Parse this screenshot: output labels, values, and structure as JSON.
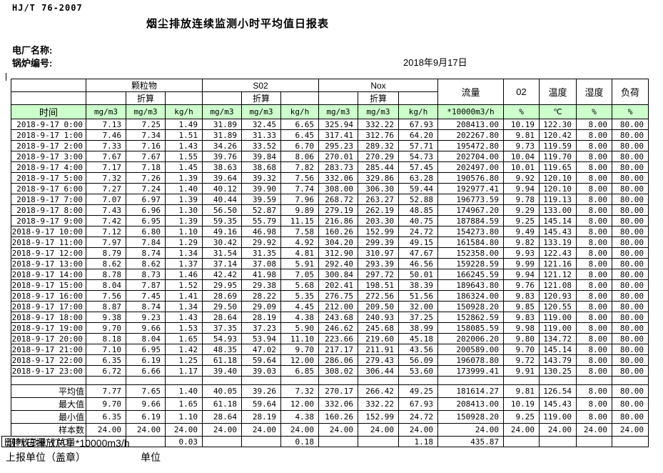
{
  "colors": {
    "header_green": "#ccffcc",
    "border": "#000000"
  },
  "header": {
    "standard": "HJ/T 76-2007",
    "title": "烟尘排放连续监测小时平均值日报表",
    "plant_label": "电厂名称:",
    "boiler_label": "锅炉编号:",
    "date": "2018年9月17日"
  },
  "table": {
    "time_header": "时间",
    "group_pm": "颗粒物",
    "group_so2": "S02",
    "group_nox": "Nox",
    "converted_label": "折算",
    "col_flow": "流量",
    "col_o2": "02",
    "col_temp": "温度",
    "col_humidity": "湿度",
    "col_load": "负荷",
    "unit_mg": "mg/m3",
    "unit_kg": "kg/h",
    "unit_flow": "*10000m3/h",
    "unit_pct": "%",
    "unit_temp": "℃",
    "rows": [
      {
        "time": "2018-9-17 0:00",
        "values": [
          "7.13",
          "7.25",
          "1.49",
          "31.89",
          "32.45",
          "6.65",
          "325.94",
          "332.22",
          "67.93",
          "208413.00",
          "10.19",
          "122.30",
          "8.00",
          "80.00"
        ]
      },
      {
        "time": "2018-9-17 1:00",
        "values": [
          "7.46",
          "7.34",
          "1.51",
          "31.89",
          "31.33",
          "6.45",
          "317.41",
          "312.76",
          "64.20",
          "202267.80",
          "9.81",
          "120.42",
          "8.00",
          "80.00"
        ]
      },
      {
        "time": "2018-9-17 2:00",
        "values": [
          "7.33",
          "7.16",
          "1.43",
          "34.26",
          "33.52",
          "6.70",
          "295.23",
          "289.32",
          "57.71",
          "195472.80",
          "9.73",
          "119.59",
          "8.00",
          "80.00"
        ]
      },
      {
        "time": "2018-9-17 3:00",
        "values": [
          "7.67",
          "7.67",
          "1.55",
          "39.76",
          "39.84",
          "8.06",
          "270.01",
          "270.29",
          "54.73",
          "202704.00",
          "10.04",
          "119.70",
          "8.00",
          "80.00"
        ]
      },
      {
        "time": "2018-9-17 4:00",
        "values": [
          "7.17",
          "7.18",
          "1.45",
          "38.63",
          "38.68",
          "7.82",
          "283.73",
          "285.44",
          "57.45",
          "202497.00",
          "10.01",
          "119.65",
          "8.00",
          "80.00"
        ]
      },
      {
        "time": "2018-9-17 5:00",
        "values": [
          "7.32",
          "7.26",
          "1.39",
          "39.64",
          "39.32",
          "7.56",
          "332.06",
          "329.86",
          "63.28",
          "190576.80",
          "9.92",
          "120.10",
          "8.00",
          "80.00"
        ]
      },
      {
        "time": "2018-9-17 6:00",
        "values": [
          "7.27",
          "7.24",
          "1.40",
          "40.12",
          "39.90",
          "7.74",
          "308.00",
          "306.30",
          "59.44",
          "192977.41",
          "9.94",
          "120.10",
          "8.00",
          "80.00"
        ]
      },
      {
        "time": "2018-9-17 7:00",
        "values": [
          "7.07",
          "6.97",
          "1.39",
          "40.44",
          "39.59",
          "7.96",
          "268.72",
          "263.27",
          "52.88",
          "196773.59",
          "9.78",
          "119.13",
          "8.00",
          "80.00"
        ]
      },
      {
        "time": "2018-9-17 8:00",
        "values": [
          "7.43",
          "6.96",
          "1.30",
          "56.50",
          "52.87",
          "9.89",
          "279.19",
          "262.19",
          "48.85",
          "174967.20",
          "9.29",
          "133.00",
          "8.00",
          "80.00"
        ]
      },
      {
        "time": "2018-9-17 9:00",
        "values": [
          "7.42",
          "6.95",
          "1.39",
          "59.35",
          "55.79",
          "11.15",
          "216.86",
          "203.30",
          "40.75",
          "187884.59",
          "9.25",
          "145.14",
          "8.00",
          "80.00"
        ]
      },
      {
        "time": "2018-9-17 10:00",
        "values": [
          "7.12",
          "6.80",
          "1.10",
          "49.16",
          "46.98",
          "7.58",
          "160.26",
          "152.99",
          "24.72",
          "154273.80",
          "9.49",
          "145.43",
          "8.00",
          "80.00"
        ]
      },
      {
        "time": "2018-9-17 11:00",
        "values": [
          "7.97",
          "7.84",
          "1.29",
          "30.42",
          "29.92",
          "4.92",
          "304.20",
          "299.39",
          "49.15",
          "161584.80",
          "9.82",
          "133.19",
          "8.00",
          "80.00"
        ]
      },
      {
        "time": "2018-9-17 12:00",
        "values": [
          "8.79",
          "8.74",
          "1.34",
          "31.54",
          "31.35",
          "4.81",
          "312.90",
          "310.97",
          "47.67",
          "152358.00",
          "9.93",
          "122.43",
          "8.00",
          "80.00"
        ]
      },
      {
        "time": "2018-9-17 13:00",
        "values": [
          "8.62",
          "8.62",
          "1.37",
          "37.14",
          "37.08",
          "5.91",
          "292.40",
          "293.39",
          "46.56",
          "159228.59",
          "9.99",
          "121.16",
          "8.00",
          "80.00"
        ]
      },
      {
        "time": "2018-9-17 14:00",
        "values": [
          "8.78",
          "8.73",
          "1.46",
          "42.42",
          "41.98",
          "7.05",
          "300.84",
          "297.72",
          "50.01",
          "166245.59",
          "9.94",
          "121.12",
          "8.00",
          "80.00"
        ]
      },
      {
        "time": "2018-9-17 15:00",
        "values": [
          "8.04",
          "7.87",
          "1.52",
          "29.95",
          "29.38",
          "5.68",
          "202.41",
          "198.51",
          "38.39",
          "189643.80",
          "9.76",
          "121.08",
          "8.00",
          "80.00"
        ]
      },
      {
        "time": "2018-9-17 16:00",
        "values": [
          "7.56",
          "7.45",
          "1.41",
          "28.69",
          "28.22",
          "5.35",
          "276.75",
          "272.56",
          "51.56",
          "186324.00",
          "9.83",
          "120.93",
          "8.00",
          "80.00"
        ]
      },
      {
        "time": "2018-9-17 17:00",
        "values": [
          "8.87",
          "8.74",
          "1.34",
          "29.50",
          "29.09",
          "4.45",
          "212.00",
          "209.50",
          "32.00",
          "150928.20",
          "9.85",
          "120.55",
          "8.00",
          "80.00"
        ]
      },
      {
        "time": "2018-9-17 18:00",
        "values": [
          "9.38",
          "9.23",
          "1.43",
          "28.64",
          "28.19",
          "4.38",
          "243.68",
          "240.93",
          "37.25",
          "152862.59",
          "9.83",
          "119.00",
          "8.00",
          "80.00"
        ]
      },
      {
        "time": "2018-9-17 19:00",
        "values": [
          "9.70",
          "9.66",
          "1.53",
          "37.35",
          "37.23",
          "5.90",
          "246.62",
          "245.68",
          "38.99",
          "158085.59",
          "9.98",
          "119.00",
          "8.00",
          "80.00"
        ]
      },
      {
        "time": "2018-9-17 20:00",
        "values": [
          "8.18",
          "8.04",
          "1.65",
          "54.93",
          "53.94",
          "11.10",
          "223.66",
          "219.60",
          "45.18",
          "202006.20",
          "9.80",
          "134.72",
          "8.00",
          "80.00"
        ]
      },
      {
        "time": "2018-9-17 21:00",
        "values": [
          "7.10",
          "6.95",
          "1.42",
          "48.35",
          "47.02",
          "9.70",
          "217.17",
          "211.91",
          "43.56",
          "200589.00",
          "9.70",
          "145.14",
          "8.00",
          "80.00"
        ]
      },
      {
        "time": "2018-9-17 22:00",
        "values": [
          "6.35",
          "6.19",
          "1.25",
          "61.18",
          "59.64",
          "12.00",
          "286.06",
          "279.43",
          "56.09",
          "196078.80",
          "9.72",
          "143.79",
          "8.00",
          "80.00"
        ]
      },
      {
        "time": "2018-9-17 23:00",
        "values": [
          "6.72",
          "6.66",
          "1.17",
          "39.40",
          "39.03",
          "6.85",
          "308.02",
          "306.44",
          "53.60",
          "173999.41",
          "9.91",
          "130.25",
          "8.00",
          "80.00"
        ]
      }
    ],
    "summary": [
      {
        "label": "平均值",
        "values": [
          "7.77",
          "7.65",
          "1.40",
          "40.05",
          "39.26",
          "7.32",
          "270.17",
          "266.42",
          "49.25",
          "181614.27",
          "9.81",
          "126.54",
          "8.00",
          "80.00"
        ]
      },
      {
        "label": "最大值",
        "values": [
          "9.70",
          "9.66",
          "1.65",
          "61.18",
          "59.64",
          "12.00",
          "332.06",
          "332.22",
          "67.93",
          "208413.00",
          "10.19",
          "145.43",
          "8.00",
          "80.00"
        ]
      },
      {
        "label": "最小值",
        "values": [
          "6.35",
          "6.19",
          "1.10",
          "28.64",
          "28.19",
          "4.38",
          "160.26",
          "152.99",
          "24.72",
          "150928.20",
          "9.25",
          "119.00",
          "8.00",
          "80.00"
        ]
      },
      {
        "label": "样本数",
        "values": [
          "24.00",
          "24.00",
          "24.00",
          "24.00",
          "24.00",
          "24.00",
          "24.00",
          "24.00",
          "24.00",
          "24.00",
          "24.00",
          "24.00",
          "24.00",
          "24.00"
        ]
      }
    ],
    "daily_total": {
      "label": "日排放总量（T/D）",
      "values": [
        "",
        "",
        "0.03",
        "",
        "",
        "0.18",
        "",
        "",
        "1.18",
        "435.87",
        "",
        "",
        "",
        ""
      ]
    }
  },
  "footer": {
    "flue_total_label": "烟气日排放总量*10000m3/h",
    "report_unit_label": "上报单位（盖章）",
    "unit_label": "单位"
  }
}
